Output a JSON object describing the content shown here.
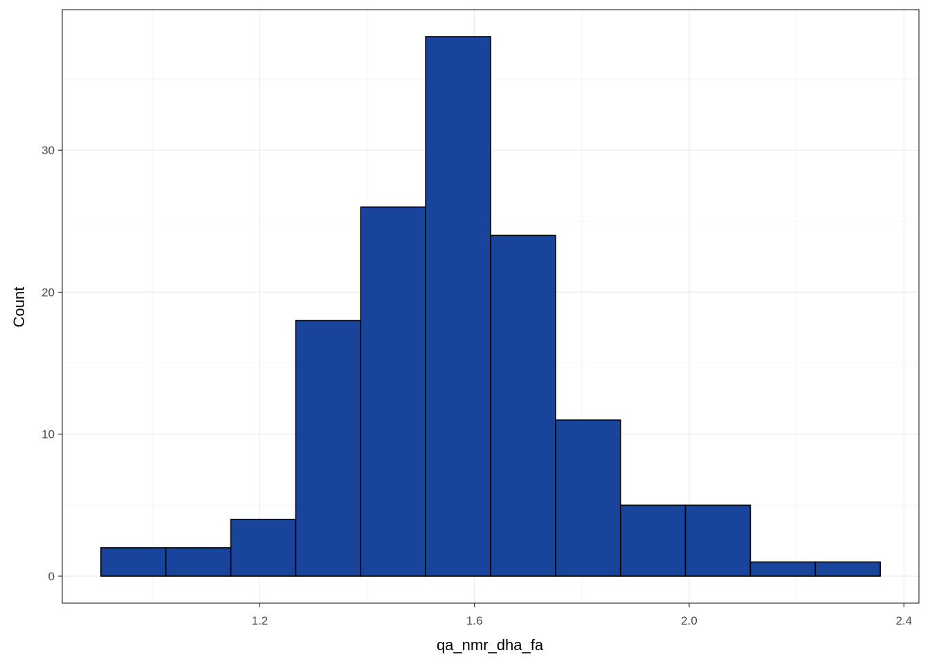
{
  "chart_data": {
    "type": "bar",
    "subtype": "histogram",
    "title": "",
    "xlabel": "qa_nmr_dha_fa",
    "ylabel": "Count",
    "bins": [
      {
        "x0": 0.904,
        "x1": 1.025,
        "count": 2
      },
      {
        "x0": 1.025,
        "x1": 1.146,
        "count": 2
      },
      {
        "x0": 1.146,
        "x1": 1.267,
        "count": 4
      },
      {
        "x0": 1.267,
        "x1": 1.388,
        "count": 18
      },
      {
        "x0": 1.388,
        "x1": 1.509,
        "count": 26
      },
      {
        "x0": 1.509,
        "x1": 1.63,
        "count": 38
      },
      {
        "x0": 1.63,
        "x1": 1.751,
        "count": 24
      },
      {
        "x0": 1.751,
        "x1": 1.872,
        "count": 11
      },
      {
        "x0": 1.872,
        "x1": 1.993,
        "count": 5
      },
      {
        "x0": 1.993,
        "x1": 2.114,
        "count": 5
      },
      {
        "x0": 2.114,
        "x1": 2.235,
        "count": 1
      },
      {
        "x0": 2.235,
        "x1": 2.356,
        "count": 1
      }
    ],
    "xlim": [
      0.832,
      2.428
    ],
    "ylim": [
      -1.9,
      39.9
    ],
    "x_ticks": [
      1.2,
      1.6,
      2.0,
      2.4
    ],
    "x_tick_labels": [
      "1.2",
      "1.6",
      "2.0",
      "2.4"
    ],
    "x_minor": [
      1.0,
      1.4,
      1.8,
      2.2
    ],
    "y_ticks": [
      0,
      10,
      20,
      30
    ],
    "y_tick_labels": [
      "0",
      "10",
      "20",
      "30"
    ],
    "y_minor": [
      5,
      15,
      25,
      35
    ],
    "grid": true,
    "colors": {
      "bar_fill": "#18449B",
      "bar_stroke": "#000000",
      "grid_major": "#EBEBEB",
      "grid_minor": "#F5F5F5",
      "panel_border": "#333333"
    }
  }
}
